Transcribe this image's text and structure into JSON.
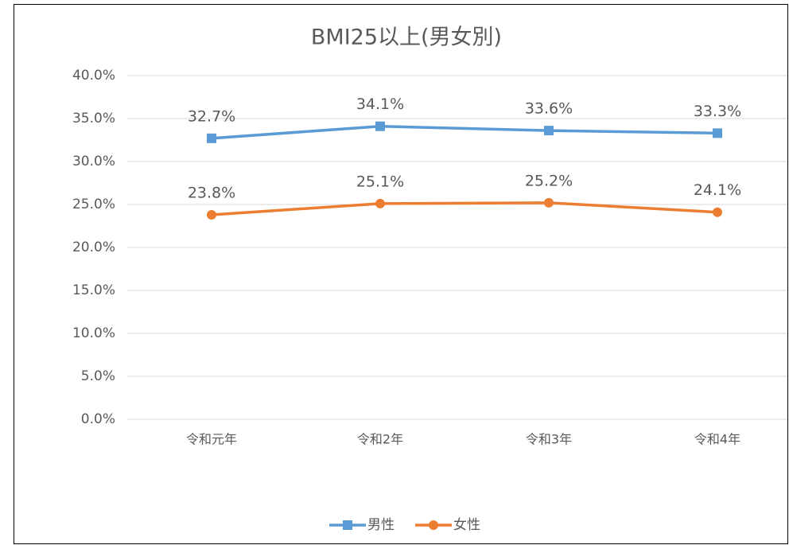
{
  "chart_data": {
    "type": "line",
    "title": "BMI25以上(男女別)",
    "categories": [
      "令和元年",
      "令和2年",
      "令和3年",
      "令和4年"
    ],
    "series": [
      {
        "name": "男性",
        "color": "#5b9bd5",
        "marker": "square",
        "values": [
          32.7,
          34.1,
          33.6,
          33.3
        ],
        "value_labels": [
          "32.7%",
          "34.1%",
          "33.6%",
          "33.3%"
        ]
      },
      {
        "name": "女性",
        "color": "#ed7d31",
        "marker": "circle",
        "values": [
          23.8,
          25.1,
          25.2,
          24.1
        ],
        "value_labels": [
          "23.8%",
          "25.1%",
          "25.2%",
          "24.1%"
        ]
      }
    ],
    "ylim": [
      0,
      40
    ],
    "yticks": [
      {
        "value": 0,
        "label": "0.0%"
      },
      {
        "value": 5,
        "label": "5.0%"
      },
      {
        "value": 10,
        "label": "10.0%"
      },
      {
        "value": 15,
        "label": "15.0%"
      },
      {
        "value": 20,
        "label": "20.0%"
      },
      {
        "value": 25,
        "label": "25.0%"
      },
      {
        "value": 30,
        "label": "30.0%"
      },
      {
        "value": 35,
        "label": "35.0%"
      },
      {
        "value": 40,
        "label": "40.0%"
      }
    ],
    "grid": true,
    "legend": "bottom"
  }
}
